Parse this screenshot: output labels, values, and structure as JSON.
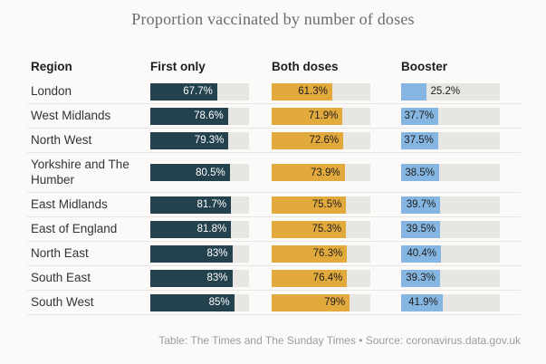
{
  "title": "Proportion vaccinated by number of doses",
  "footer": "Table: The Times and The Sunday Times • Source: coronavirus.data.gov.uk",
  "colors": {
    "background": "#fbfaf8",
    "track": "#e7e6e3",
    "first_only_fill": "#24414e",
    "both_doses_fill": "#e2a93d",
    "booster_fill": "#85b6e2",
    "label_on_dark": "#ffffff",
    "label_on_light": "#1d1d1b",
    "title_text": "#6b6b6b",
    "header_text": "#1d1d1b",
    "region_text": "#333338",
    "footer_text": "#9c9c9a"
  },
  "chart_data": {
    "type": "bar",
    "title": "Proportion vaccinated by number of doses",
    "columns": [
      "Region",
      "First only",
      "Both doses",
      "Booster"
    ],
    "categories": [
      "London",
      "West Midlands",
      "North West",
      "Yorkshire and The Humber",
      "East Midlands",
      "East of England",
      "North East",
      "South East",
      "South West"
    ],
    "series": [
      {
        "name": "First only",
        "color": "#24414e",
        "label_color": "#ffffff",
        "values": [
          67.7,
          78.6,
          79.3,
          80.5,
          81.7,
          81.8,
          83,
          83,
          85
        ],
        "labels": [
          "67.7%",
          "78.6%",
          "79.3%",
          "80.5%",
          "81.7%",
          "81.8%",
          "83%",
          "83%",
          "85%"
        ]
      },
      {
        "name": "Both doses",
        "color": "#e2a93d",
        "label_color": "#1d1d1b",
        "values": [
          61.3,
          71.9,
          72.6,
          73.9,
          75.5,
          75.3,
          76.3,
          76.4,
          79
        ],
        "labels": [
          "61.3%",
          "71.9%",
          "72.6%",
          "73.9%",
          "75.5%",
          "75.3%",
          "76.3%",
          "76.4%",
          "79%"
        ]
      },
      {
        "name": "Booster",
        "color": "#85b6e2",
        "label_color": "#1d1d1b",
        "values": [
          25.2,
          37.7,
          37.5,
          38.5,
          39.7,
          39.5,
          40.4,
          39.3,
          41.9
        ],
        "labels": [
          "25.2%",
          "37.7%",
          "37.5%",
          "38.5%",
          "39.7%",
          "39.5%",
          "40.4%",
          "39.3%",
          "41.9%"
        ]
      }
    ],
    "xlim": [
      0,
      100
    ],
    "grid": false,
    "legend_position": "column-headers"
  }
}
